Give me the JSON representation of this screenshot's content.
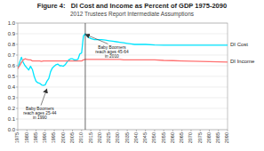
{
  "chart_data": {
    "type": "line",
    "title": "Figure 4:   DI Cost and Income as Percent of GDP 1975-2090",
    "subtitle": "2012 Trustees Report Intermediate Assumptions",
    "x": [
      1975,
      1976,
      1977,
      1978,
      1979,
      1980,
      1981,
      1982,
      1983,
      1984,
      1985,
      1986,
      1987,
      1988,
      1989,
      1990,
      1991,
      1992,
      1993,
      1994,
      1995,
      1996,
      1997,
      1998,
      1999,
      2000,
      2001,
      2002,
      2003,
      2004,
      2005,
      2006,
      2007,
      2008,
      2009,
      2010,
      2011,
      2012,
      2012,
      2013,
      2015,
      2017,
      2019,
      2021,
      2023,
      2025,
      2027,
      2029,
      2031,
      2033,
      2035,
      2037,
      2039,
      2041,
      2043,
      2045,
      2050,
      2055,
      2060,
      2065,
      2070,
      2075,
      2080,
      2085,
      2090
    ],
    "series": [
      {
        "name": "DI Cost",
        "color": "#00E5FF",
        "values": [
          0.575,
          0.63,
          0.68,
          0.63,
          0.6,
          0.58,
          0.56,
          0.595,
          0.565,
          0.5,
          0.455,
          0.44,
          0.435,
          0.42,
          0.415,
          0.42,
          0.455,
          0.48,
          0.545,
          0.58,
          0.595,
          0.61,
          0.615,
          0.6,
          0.6,
          0.595,
          0.61,
          0.635,
          0.655,
          0.665,
          0.665,
          0.655,
          0.655,
          0.66,
          0.71,
          0.72,
          0.88,
          0.9,
          0.9,
          0.875,
          0.855,
          0.845,
          0.845,
          0.845,
          0.84,
          0.835,
          0.83,
          0.825,
          0.82,
          0.815,
          0.81,
          0.805,
          0.8,
          0.8,
          0.8,
          0.8,
          0.795,
          0.793,
          0.793,
          0.793,
          0.793,
          0.793,
          0.793,
          0.793,
          0.793
        ]
      },
      {
        "name": "DI Income",
        "color": "#FF7070",
        "values": [
          0.575,
          0.6,
          0.63,
          0.655,
          0.665,
          0.66,
          0.655,
          0.655,
          0.645,
          0.645,
          0.645,
          0.645,
          0.645,
          0.64,
          0.645,
          0.645,
          0.645,
          0.645,
          0.645,
          0.645,
          0.645,
          0.645,
          0.645,
          0.645,
          0.645,
          0.645,
          0.645,
          0.645,
          0.645,
          0.645,
          0.645,
          0.645,
          0.645,
          0.645,
          0.645,
          0.645,
          0.655,
          0.66,
          0.66,
          0.66,
          0.66,
          0.66,
          0.66,
          0.66,
          0.66,
          0.66,
          0.66,
          0.66,
          0.66,
          0.655,
          0.655,
          0.655,
          0.655,
          0.655,
          0.655,
          0.655,
          0.655,
          0.65,
          0.648,
          0.645,
          0.643,
          0.64,
          0.638,
          0.636,
          0.635
        ]
      }
    ],
    "xlim": [
      1975,
      2090
    ],
    "xticks": [
      1975,
      1980,
      1985,
      1990,
      1995,
      2000,
      2005,
      2010,
      2015,
      2020,
      2025,
      2030,
      2035,
      2040,
      2045,
      2050,
      2055,
      2060,
      2065,
      2070,
      2075,
      2080,
      2085,
      2090
    ],
    "ylim": [
      0.0,
      1.0
    ],
    "yticks": [
      {
        "value": 0.0,
        "label": "0.0"
      },
      0.1,
      0.2,
      0.3,
      0.4,
      0.5,
      0.6,
      0.7,
      0.8,
      0.9,
      {
        "value": 1.0,
        "label": "1.0"
      }
    ],
    "grid": true,
    "vline": 2012,
    "annotations": [
      {
        "text": "Baby Boomers\nreach ages 25-44\nin 1990",
        "x": 1991,
        "y": 0.385
      },
      {
        "text": "Baby Boomers\nreach ages 45-64\nin 2010",
        "x": 2012,
        "y": 0.895
      }
    ]
  }
}
